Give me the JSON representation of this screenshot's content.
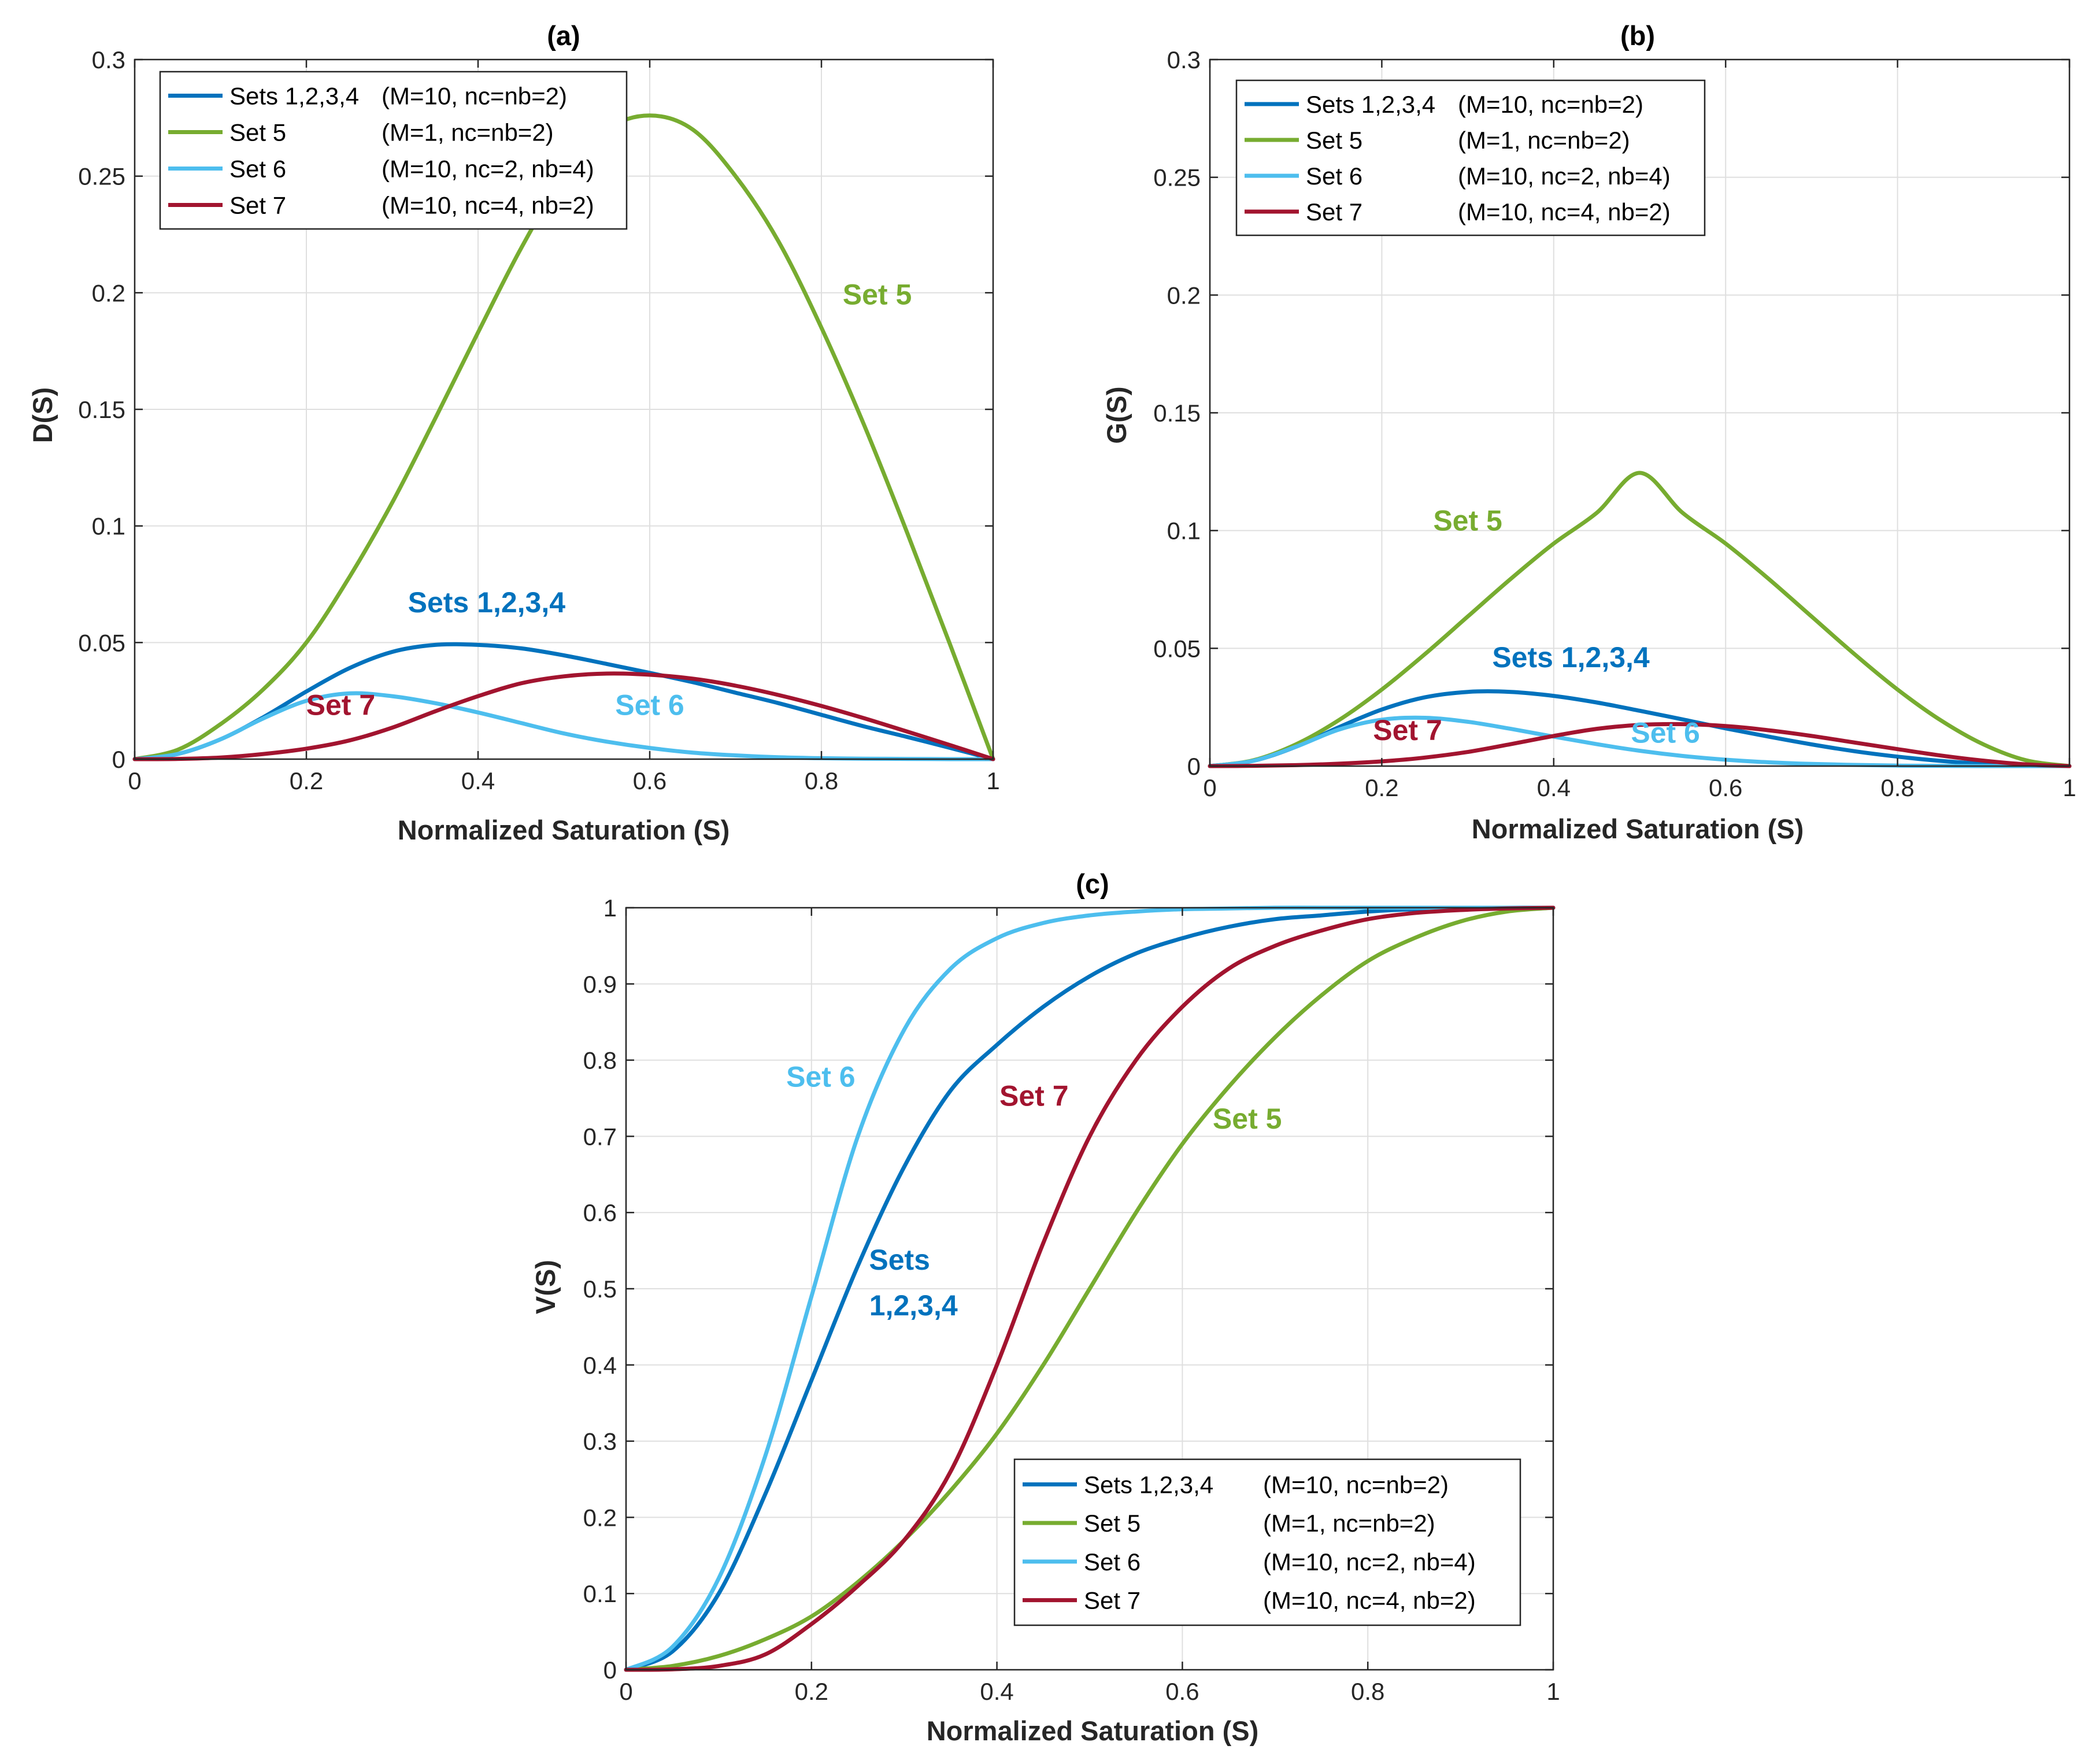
{
  "colors": {
    "s1234": "#0072bd",
    "s5": "#77ac30",
    "s6": "#4dbeee",
    "s7": "#a2142f"
  },
  "legend_entries": [
    {
      "key": "s1234",
      "label": "Sets 1,2,3,4",
      "params": "(M=10, nc=nb=2)"
    },
    {
      "key": "s5",
      "label": "Set 5",
      "params": "(M=1, nc=nb=2)"
    },
    {
      "key": "s6",
      "label": "Set 6",
      "params": "(M=10, nc=2, nb=4)"
    },
    {
      "key": "s7",
      "label": "Set 7",
      "params": "(M=10, nc=4, nb=2)"
    }
  ],
  "chart_data": [
    {
      "id": "a",
      "type": "line",
      "title": "(a)",
      "xlabel": "Normalized Saturation (S)",
      "ylabel": "D(S)",
      "xlim": [
        0,
        1
      ],
      "ylim": [
        0,
        0.3
      ],
      "xticks": [
        0,
        0.2,
        0.4,
        0.6,
        0.8,
        1
      ],
      "xtick_labels": [
        "0",
        "0.2",
        "0.4",
        "0.6",
        "0.8",
        "1"
      ],
      "yticks": [
        0,
        0.05,
        0.1,
        0.15,
        0.2,
        0.25,
        0.3
      ],
      "ytick_labels": [
        "0",
        "0.05",
        "0.1",
        "0.15",
        "0.2",
        "0.25",
        "0.3"
      ],
      "grid": true,
      "legend_position": "top-left",
      "x": [
        0,
        0.05,
        0.1,
        0.15,
        0.2,
        0.25,
        0.3,
        0.35,
        0.4,
        0.45,
        0.5,
        0.55,
        0.6,
        0.65,
        0.7,
        0.75,
        0.8,
        0.85,
        0.9,
        0.95,
        1
      ],
      "series": [
        {
          "key": "s1234",
          "values": [
            0,
            0.0022,
            0.0085,
            0.018,
            0.029,
            0.039,
            0.046,
            0.049,
            0.049,
            0.0475,
            0.0445,
            0.0408,
            0.037,
            0.033,
            0.0285,
            0.024,
            0.019,
            0.014,
            0.0095,
            0.0048,
            0
          ]
        },
        {
          "key": "s5",
          "values": [
            0,
            0.004,
            0.015,
            0.03,
            0.05,
            0.078,
            0.11,
            0.146,
            0.183,
            0.219,
            0.25,
            0.27,
            0.276,
            0.27,
            0.25,
            0.222,
            0.185,
            0.143,
            0.097,
            0.049,
            0
          ]
        },
        {
          "key": "s6",
          "values": [
            0,
            0.0022,
            0.0085,
            0.0175,
            0.025,
            0.0282,
            0.027,
            0.024,
            0.02,
            0.0155,
            0.011,
            0.0075,
            0.0048,
            0.0028,
            0.0016,
            0.0008,
            0.0004,
            0.0002,
            0.0001,
            0,
            0
          ]
        },
        {
          "key": "s7",
          "values": [
            0,
            0.0001,
            0.0007,
            0.0022,
            0.0045,
            0.008,
            0.0135,
            0.0205,
            0.027,
            0.0325,
            0.0355,
            0.0367,
            0.0362,
            0.0345,
            0.0315,
            0.0275,
            0.0228,
            0.0175,
            0.0118,
            0.006,
            0
          ]
        }
      ],
      "annotations": [
        {
          "key": "s5",
          "text": "Set 5",
          "x": 0.865,
          "y": 0.195
        },
        {
          "key": "s1234",
          "text": "Sets 1,2,3,4",
          "x": 0.41,
          "y": 0.063
        },
        {
          "key": "s7",
          "text": "Set 7",
          "x": 0.24,
          "y": 0.019
        },
        {
          "key": "s6",
          "text": "Set 6",
          "x": 0.6,
          "y": 0.019
        }
      ]
    },
    {
      "id": "b",
      "type": "line",
      "title": "(b)",
      "xlabel": "Normalized Saturation (S)",
      "ylabel": "G(S)",
      "xlim": [
        0,
        1
      ],
      "ylim": [
        0,
        0.3
      ],
      "xticks": [
        0,
        0.2,
        0.4,
        0.6,
        0.8,
        1
      ],
      "xtick_labels": [
        "0",
        "0.2",
        "0.4",
        "0.6",
        "0.8",
        "1"
      ],
      "yticks": [
        0,
        0.05,
        0.1,
        0.15,
        0.2,
        0.25,
        0.3
      ],
      "ytick_labels": [
        "0",
        "0.05",
        "0.1",
        "0.15",
        "0.2",
        "0.25",
        "0.3"
      ],
      "grid": true,
      "legend_position": "top-left",
      "x": [
        0,
        0.05,
        0.1,
        0.15,
        0.2,
        0.25,
        0.3,
        0.35,
        0.4,
        0.45,
        0.5,
        0.55,
        0.6,
        0.65,
        0.7,
        0.75,
        0.8,
        0.85,
        0.9,
        0.95,
        1
      ],
      "series": [
        {
          "key": "s1234",
          "values": [
            0,
            0.0022,
            0.0082,
            0.0165,
            0.024,
            0.0292,
            0.0315,
            0.0315,
            0.0298,
            0.027,
            0.0235,
            0.0198,
            0.016,
            0.0125,
            0.0092,
            0.0063,
            0.004,
            0.0022,
            0.001,
            0.0003,
            0
          ]
        },
        {
          "key": "s5",
          "values": [
            0,
            0.0024,
            0.0092,
            0.0195,
            0.0325,
            0.0475,
            0.0635,
            0.0795,
            0.0945,
            0.1075,
            0.1245,
            0.1075,
            0.0945,
            0.0795,
            0.0635,
            0.0475,
            0.0325,
            0.0195,
            0.0092,
            0.0024,
            0
          ]
        },
        {
          "key": "s6",
          "values": [
            0,
            0.0022,
            0.0082,
            0.0155,
            0.0197,
            0.0205,
            0.0188,
            0.0158,
            0.0125,
            0.0093,
            0.0065,
            0.0043,
            0.0027,
            0.0016,
            0.0009,
            0.0005,
            0.0002,
            0.0001,
            0,
            0,
            0
          ]
        },
        {
          "key": "s7",
          "values": [
            0,
            0.0001,
            0.0004,
            0.001,
            0.002,
            0.0036,
            0.006,
            0.0093,
            0.0128,
            0.0158,
            0.0175,
            0.0178,
            0.017,
            0.0152,
            0.0128,
            0.01,
            0.0072,
            0.0045,
            0.0023,
            0.0007,
            0
          ]
        }
      ],
      "annotations": [
        {
          "key": "s5",
          "text": "Set 5",
          "x": 0.3,
          "y": 0.1
        },
        {
          "key": "s1234",
          "text": "Sets 1,2,3,4",
          "x": 0.42,
          "y": 0.042
        },
        {
          "key": "s7",
          "text": "Set 7",
          "x": 0.23,
          "y": 0.011
        },
        {
          "key": "s6",
          "text": "Set 6",
          "x": 0.53,
          "y": 0.01
        }
      ]
    },
    {
      "id": "c",
      "type": "line",
      "title": "(c)",
      "xlabel": "Normalized Saturation (S)",
      "ylabel": "V(S)",
      "xlim": [
        0,
        1
      ],
      "ylim": [
        0,
        1
      ],
      "xticks": [
        0,
        0.2,
        0.4,
        0.6,
        0.8,
        1
      ],
      "xtick_labels": [
        "0",
        "0.2",
        "0.4",
        "0.6",
        "0.8",
        "1"
      ],
      "yticks": [
        0,
        0.1,
        0.2,
        0.3,
        0.4,
        0.5,
        0.6,
        0.7,
        0.8,
        0.9,
        1
      ],
      "ytick_labels": [
        "0",
        "0.1",
        "0.2",
        "0.3",
        "0.4",
        "0.5",
        "0.6",
        "0.7",
        "0.8",
        "0.9",
        "1"
      ],
      "grid": true,
      "legend_position": "bottom-right",
      "x": [
        0,
        0.05,
        0.1,
        0.15,
        0.2,
        0.25,
        0.3,
        0.35,
        0.4,
        0.45,
        0.5,
        0.55,
        0.6,
        0.65,
        0.7,
        0.75,
        0.8,
        0.85,
        0.9,
        0.95,
        1
      ],
      "series": [
        {
          "key": "s1234",
          "values": [
            0,
            0.024,
            0.1,
            0.23,
            0.38,
            0.53,
            0.66,
            0.76,
            0.82,
            0.87,
            0.91,
            0.94,
            0.96,
            0.975,
            0.985,
            0.99,
            0.995,
            0.998,
            0.999,
            1,
            1
          ]
        },
        {
          "key": "s5",
          "values": [
            0,
            0.005,
            0.018,
            0.04,
            0.07,
            0.115,
            0.17,
            0.235,
            0.31,
            0.4,
            0.5,
            0.6,
            0.69,
            0.765,
            0.83,
            0.885,
            0.93,
            0.96,
            0.982,
            0.995,
            1
          ]
        },
        {
          "key": "s6",
          "values": [
            0,
            0.03,
            0.12,
            0.28,
            0.49,
            0.7,
            0.84,
            0.92,
            0.96,
            0.98,
            0.99,
            0.995,
            0.998,
            0.999,
            1,
            1,
            1,
            1,
            1,
            1,
            1
          ]
        },
        {
          "key": "s7",
          "values": [
            0,
            0.0006,
            0.005,
            0.02,
            0.06,
            0.11,
            0.17,
            0.26,
            0.4,
            0.56,
            0.7,
            0.8,
            0.87,
            0.92,
            0.95,
            0.97,
            0.985,
            0.993,
            0.997,
            0.999,
            1
          ]
        }
      ],
      "annotations": [
        {
          "key": "s6",
          "text": "Set 6",
          "x": 0.21,
          "y": 0.765
        },
        {
          "key": "s7",
          "text": "Set 7",
          "x": 0.44,
          "y": 0.74
        },
        {
          "key": "s5",
          "text": "Set 5",
          "x": 0.67,
          "y": 0.71
        },
        {
          "key": "s1234",
          "text": "Sets",
          "x": 0.295,
          "y": 0.525
        },
        {
          "key": "s1234",
          "text": "1,2,3,4",
          "x": 0.31,
          "y": 0.465
        }
      ]
    }
  ]
}
